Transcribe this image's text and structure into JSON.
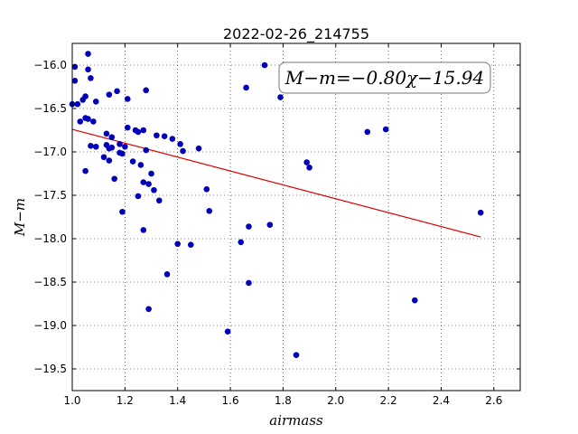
{
  "chart_data": {
    "type": "scatter",
    "title": "2022-02-26_214755",
    "xlabel": "airmass",
    "ylabel": "M−m",
    "xlim": [
      1.0,
      2.7
    ],
    "ylim": [
      -15.75,
      -19.75
    ],
    "grid": true,
    "xticks": [
      "1.0",
      "1.2",
      "1.4",
      "1.6",
      "1.8",
      "2.0",
      "2.2",
      "2.4",
      "2.6"
    ],
    "yticks": [
      "−16.0",
      "−16.5",
      "−17.0",
      "−17.5",
      "−18.0",
      "−18.5",
      "−19.0",
      "−19.5"
    ],
    "annotation": "M−m=−0.80χ−15.94",
    "fit": {
      "slope": -0.8,
      "intercept": -15.94,
      "x_range": [
        1.0,
        2.55
      ],
      "color": "#dd0000"
    },
    "marker_color": "#0000bb",
    "points": [
      [
        1.0,
        -16.45
      ],
      [
        1.01,
        -16.18
      ],
      [
        1.01,
        -16.02
      ],
      [
        1.02,
        -16.45
      ],
      [
        1.03,
        -16.65
      ],
      [
        1.04,
        -16.4
      ],
      [
        1.05,
        -16.61
      ],
      [
        1.05,
        -16.36
      ],
      [
        1.05,
        -17.22
      ],
      [
        1.06,
        -15.87
      ],
      [
        1.06,
        -16.05
      ],
      [
        1.06,
        -16.62
      ],
      [
        1.07,
        -16.15
      ],
      [
        1.07,
        -16.93
      ],
      [
        1.08,
        -16.65
      ],
      [
        1.09,
        -16.94
      ],
      [
        1.09,
        -16.42
      ],
      [
        1.12,
        -17.06
      ],
      [
        1.13,
        -16.79
      ],
      [
        1.13,
        -16.92
      ],
      [
        1.14,
        -16.96
      ],
      [
        1.14,
        -16.34
      ],
      [
        1.14,
        -17.1
      ],
      [
        1.15,
        -16.83
      ],
      [
        1.15,
        -16.95
      ],
      [
        1.16,
        -17.31
      ],
      [
        1.17,
        -16.3
      ],
      [
        1.18,
        -17.01
      ],
      [
        1.18,
        -16.91
      ],
      [
        1.19,
        -17.02
      ],
      [
        1.19,
        -17.69
      ],
      [
        1.2,
        -16.94
      ],
      [
        1.21,
        -16.39
      ],
      [
        1.21,
        -16.72
      ],
      [
        1.23,
        -17.11
      ],
      [
        1.24,
        -16.75
      ],
      [
        1.25,
        -16.77
      ],
      [
        1.25,
        -17.51
      ],
      [
        1.26,
        -17.15
      ],
      [
        1.27,
        -17.35
      ],
      [
        1.27,
        -16.75
      ],
      [
        1.27,
        -17.9
      ],
      [
        1.28,
        -16.98
      ],
      [
        1.28,
        -16.29
      ],
      [
        1.29,
        -17.37
      ],
      [
        1.29,
        -18.81
      ],
      [
        1.3,
        -17.25
      ],
      [
        1.31,
        -17.44
      ],
      [
        1.32,
        -16.81
      ],
      [
        1.33,
        -17.56
      ],
      [
        1.35,
        -16.82
      ],
      [
        1.36,
        -18.41
      ],
      [
        1.38,
        -16.85
      ],
      [
        1.4,
        -18.06
      ],
      [
        1.41,
        -16.91
      ],
      [
        1.42,
        -16.99
      ],
      [
        1.45,
        -18.07
      ],
      [
        1.48,
        -16.96
      ],
      [
        1.51,
        -17.43
      ],
      [
        1.52,
        -17.68
      ],
      [
        1.59,
        -19.07
      ],
      [
        1.64,
        -18.04
      ],
      [
        1.66,
        -16.26
      ],
      [
        1.67,
        -17.86
      ],
      [
        1.67,
        -18.51
      ],
      [
        1.73,
        -16.0
      ],
      [
        1.75,
        -17.84
      ],
      [
        1.79,
        -16.37
      ],
      [
        1.85,
        -19.34
      ],
      [
        1.89,
        -17.12
      ],
      [
        1.9,
        -17.18
      ],
      [
        2.12,
        -16.77
      ],
      [
        2.19,
        -16.74
      ],
      [
        2.3,
        -18.71
      ],
      [
        2.55,
        -17.7
      ]
    ]
  }
}
